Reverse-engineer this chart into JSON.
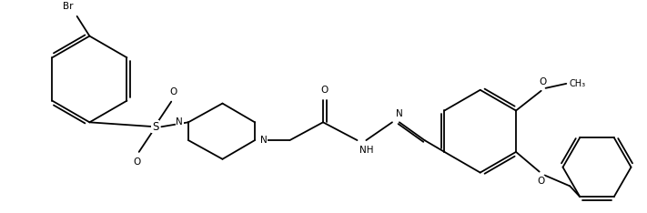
{
  "bg": "#ffffff",
  "lc": "#000000",
  "lw": 1.3,
  "fs": 7.5,
  "fig_w": 7.11,
  "fig_h": 2.34,
  "dpi": 100,
  "atoms": {
    "Br_label": "Br",
    "S_label": "S",
    "O1_label": "O",
    "O2_label": "O",
    "N1_label": "N",
    "N2_label": "N",
    "O_co_label": "O",
    "NH_label": "NH",
    "N_hyd_label": "N",
    "O_ome_label": "O",
    "me_label": "CH₃",
    "O_obn_label": "O"
  }
}
